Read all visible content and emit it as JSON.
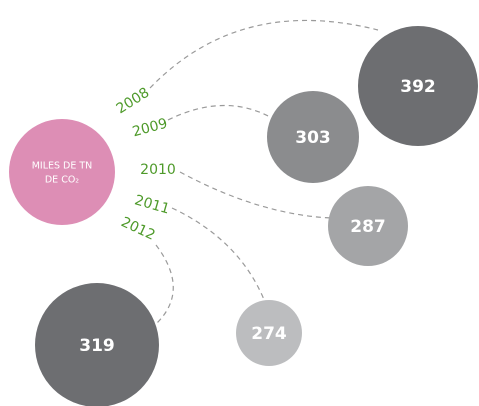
{
  "chart_data": {
    "type": "bubble",
    "center_label": [
      "MILES DE TN",
      "DE CO₂"
    ],
    "center_color": "#dd8eb5",
    "categories": [
      "2008",
      "2009",
      "2010",
      "2011",
      "2012"
    ],
    "values": [
      392,
      303,
      287,
      274,
      319
    ],
    "colors": [
      "#6d6e71",
      "#8b8c8e",
      "#a4a5a7",
      "#bcbdbf",
      "#6d6e71"
    ]
  }
}
